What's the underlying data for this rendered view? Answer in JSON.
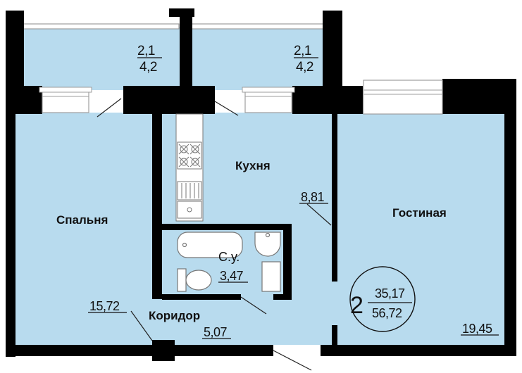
{
  "rooms": {
    "bedroom": {
      "name": "Спальня",
      "area": "15,72"
    },
    "kitchen": {
      "name": "Кухня",
      "area": "8,81"
    },
    "living": {
      "name": "Гостиная",
      "area": "19,45"
    },
    "corridor": {
      "name": "Коридор",
      "area": "5,07"
    },
    "bathroom": {
      "name": "С.у.",
      "area": "3,47"
    }
  },
  "balconies": [
    {
      "top": "2,1",
      "bottom": "4,2"
    },
    {
      "top": "2,1",
      "bottom": "4,2"
    }
  ],
  "apartment": {
    "rooms": "2",
    "living_area": "35,17",
    "total_area": "56,72"
  },
  "colors": {
    "room_fill": "#b8dbee",
    "wall": "#000000",
    "window": "#ffffff",
    "window_frame": "#9e9e9e"
  }
}
